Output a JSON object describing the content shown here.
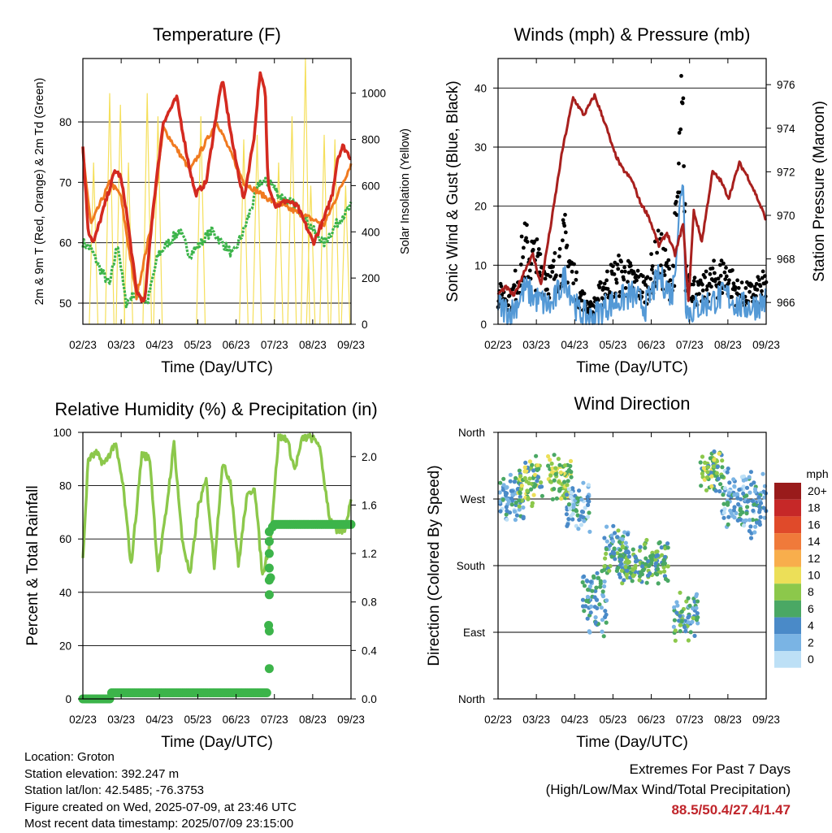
{
  "chart_data": [
    {
      "type": "line",
      "title": "Temperature (F)",
      "xlabel": "Time (Day/UTC)",
      "ylabel": "2m & 9m T (Red, Orange) & 2m Td (Green)",
      "y2label": "Solar Insolation (Yellow)",
      "x_ticks": [
        "02/23",
        "03/23",
        "04/23",
        "05/23",
        "06/23",
        "07/23",
        "08/23",
        "09/23"
      ],
      "ylim": [
        46.5,
        90.5
      ],
      "y_ticks": [
        50,
        60,
        70,
        80
      ],
      "y2lim": [
        0,
        1150
      ],
      "y2_ticks": [
        0,
        200,
        400,
        600,
        800,
        1000
      ],
      "grid": true,
      "series": [
        {
          "name": "2m T",
          "color": "#d42a20",
          "x": [
            0,
            0.2,
            0.4,
            0.8,
            1.2,
            1.4,
            1.6,
            2.0,
            2.3,
            2.6,
            3.0,
            3.5,
            3.9,
            4.2,
            4.6,
            5.0,
            5.2,
            5.6,
            6.0,
            6.4,
            6.6,
            6.8,
            6.9,
            7.2,
            7.6,
            8.0,
            8.3,
            8.6,
            9.0,
            9.3,
            9.5,
            9.7,
            10.0
          ],
          "y": [
            76,
            62,
            60,
            66,
            72,
            71,
            66,
            52,
            50,
            65,
            80,
            84,
            74,
            68,
            70,
            82,
            87,
            76,
            67,
            78,
            88,
            85,
            70,
            66,
            67,
            66,
            63,
            60,
            64,
            68,
            74,
            76,
            74
          ]
        },
        {
          "name": "9m T",
          "color": "#f07a20",
          "x": [
            0,
            0.3,
            0.6,
            1.0,
            1.4,
            2.0,
            2.6,
            3.0,
            4.0,
            5.0,
            6.0,
            7.0,
            8.0,
            9.0,
            10.0
          ],
          "y": [
            75,
            63,
            66,
            70,
            68,
            51,
            64,
            79,
            72,
            80,
            70,
            67,
            65,
            63,
            73
          ]
        },
        {
          "name": "2m Td",
          "color": "#3cb44a",
          "x": [
            0,
            0.3,
            0.6,
            1.0,
            1.3,
            1.6,
            2.0,
            2.4,
            2.8,
            3.2,
            3.6,
            4.0,
            4.4,
            4.8,
            5.2,
            5.6,
            6.0,
            6.3,
            6.6,
            7.0,
            7.3,
            7.6,
            8.0,
            8.3,
            8.6,
            9.0,
            9.3,
            9.6,
            10.0
          ],
          "y": [
            60,
            59,
            56,
            53,
            60,
            50,
            52,
            50,
            58,
            60,
            62,
            58,
            60,
            62,
            60,
            58,
            62,
            66,
            70,
            70,
            68,
            67,
            66,
            64,
            62,
            60,
            62,
            64,
            66
          ]
        }
      ],
      "solar_insolation": {
        "name": "Solar Insolation",
        "color": "#f5df5a",
        "peaks_x": [
          0.4,
          1.0,
          1.4,
          1.7,
          2.4,
          2.8,
          4.4,
          6.0,
          6.5,
          7.3,
          7.8,
          8.3,
          8.5,
          9.0,
          9.4,
          9.8
        ],
        "peaks_y": [
          700,
          1000,
          950,
          700,
          1000,
          900,
          900,
          800,
          820,
          700,
          900,
          1150,
          600,
          820,
          800,
          600
        ]
      }
    },
    {
      "type": "line",
      "title": "Winds (mph) & Pressure (mb)",
      "xlabel": "Time (Day/UTC)",
      "ylabel": "Sonic Wind & Gust (Blue, Black)",
      "y2label": "Station Pressure (Maroon)",
      "x_ticks": [
        "02/23",
        "03/23",
        "04/23",
        "05/23",
        "06/23",
        "07/23",
        "08/23",
        "09/23"
      ],
      "ylim": [
        0,
        45
      ],
      "y_ticks": [
        0,
        10,
        20,
        30,
        40
      ],
      "y2lim": [
        965.0,
        977.2
      ],
      "y2_ticks": [
        966,
        968,
        970,
        972,
        974,
        976
      ],
      "grid": true,
      "series": [
        {
          "name": "Station Pressure",
          "color": "#a8201e",
          "x": [
            0,
            0.3,
            0.6,
            1.0,
            1.3,
            1.6,
            2.0,
            2.4,
            2.8,
            3.2,
            3.6,
            4.0,
            4.3,
            4.6,
            5.0,
            5.3,
            5.6,
            6.0,
            6.3,
            6.6,
            6.9,
            7.1,
            7.3,
            7.6,
            8.0,
            8.3,
            8.6,
            9.0,
            9.3,
            9.6,
            10.0
          ],
          "y": [
            966.4,
            966.7,
            966.3,
            967.5,
            968.2,
            966.8,
            969.8,
            973.0,
            975.4,
            974.6,
            975.5,
            974.2,
            973.0,
            972.2,
            971.6,
            970.6,
            970.0,
            968.6,
            969.2,
            968.2,
            969.6,
            966.0,
            970.2,
            968.8,
            972.0,
            971.6,
            970.8,
            972.4,
            971.8,
            971.0,
            969.8
          ]
        },
        {
          "name": "Sonic Wind",
          "color": "#5499d6",
          "x": [
            0,
            0.5,
            1.0,
            1.5,
            2.0,
            2.5,
            3.0,
            3.5,
            4.0,
            4.5,
            5.0,
            5.5,
            6.0,
            6.5,
            6.9,
            7.0,
            7.1,
            7.5,
            8.0,
            8.5,
            9.0,
            9.5,
            10.0
          ],
          "y": [
            3,
            2,
            6,
            4,
            3,
            8,
            2,
            1,
            3,
            4,
            5,
            3,
            8,
            5,
            26,
            4,
            2,
            3,
            4,
            5,
            3,
            3,
            4
          ]
        },
        {
          "name": "Gust",
          "color": "#000000",
          "x": [
            0,
            0.5,
            1.0,
            1.5,
            2.0,
            2.5,
            3.0,
            3.5,
            4.0,
            4.5,
            5.0,
            5.5,
            6.0,
            6.5,
            6.9,
            7.0,
            7.5,
            8.0,
            8.5,
            9.0,
            9.5,
            10.0
          ],
          "y": [
            6,
            5,
            15,
            12,
            9,
            16,
            6,
            3,
            8,
            10,
            9,
            7,
            14,
            8,
            42,
            10,
            6,
            9,
            10,
            6,
            6,
            8
          ]
        }
      ]
    },
    {
      "type": "line",
      "title": "Relative Humidity (%) & Precipitation (in)",
      "xlabel": "Time (Day/UTC)",
      "ylabel": "Percent & Total Rainfall",
      "x_ticks": [
        "02/23",
        "03/23",
        "04/23",
        "05/23",
        "06/23",
        "07/23",
        "08/23",
        "09/23"
      ],
      "ylim": [
        0,
        100
      ],
      "y_ticks": [
        0,
        20,
        40,
        60,
        80,
        100
      ],
      "y2lim": [
        0,
        2.2
      ],
      "y2_ticks": [
        "0.0",
        "0.4",
        "0.8",
        "1.2",
        "1.6",
        "2.0"
      ],
      "grid": true,
      "series": [
        {
          "name": "Relative Humidity",
          "color": "#8cc84b",
          "x": [
            0,
            0.2,
            0.5,
            0.8,
            1.2,
            1.5,
            1.8,
            2.2,
            2.5,
            2.8,
            3.1,
            3.4,
            3.7,
            4.0,
            4.3,
            4.6,
            4.9,
            5.2,
            5.5,
            5.8,
            6.1,
            6.4,
            6.7,
            7.0,
            7.3,
            7.6,
            7.9,
            8.2,
            8.5,
            8.8,
            9.2,
            9.5,
            9.8,
            10.0
          ],
          "y": [
            52,
            90,
            92,
            88,
            96,
            80,
            50,
            92,
            90,
            48,
            70,
            96,
            60,
            46,
            72,
            82,
            50,
            88,
            82,
            50,
            75,
            80,
            46,
            60,
            98,
            98,
            86,
            98,
            98,
            96,
            68,
            62,
            64,
            76
          ]
        },
        {
          "name": "Total Rainfall",
          "color": "#3cb44a",
          "x": [
            0,
            1.0,
            1.01,
            6.9,
            6.92,
            7.0,
            7.02,
            7.08,
            10.0
          ],
          "y": [
            0.0,
            0.0,
            0.05,
            0.05,
            0.56,
            1.0,
            1.3,
            1.44,
            1.44
          ]
        }
      ]
    },
    {
      "type": "scatter",
      "title": "Wind Direction",
      "xlabel": "Time (Day/UTC)",
      "ylabel": "Direction (Colored By Speed)",
      "x_ticks": [
        "02/23",
        "03/23",
        "04/23",
        "05/23",
        "06/23",
        "07/23",
        "08/23",
        "09/23"
      ],
      "y_categories": [
        "North",
        "East",
        "South",
        "West",
        "North"
      ],
      "ylim": [
        0,
        360
      ],
      "grid": true,
      "legend": {
        "title": "mph",
        "position": "right",
        "labels": [
          "20+",
          "18",
          "16",
          "14",
          "12",
          "10",
          "8",
          "6",
          "4",
          "2",
          "0"
        ],
        "colors": [
          "#991b1b",
          "#c62828",
          "#e04a2a",
          "#f07a3a",
          "#f8ae4c",
          "#ecdf58",
          "#8cc84b",
          "#4aa864",
          "#4a8ac8",
          "#7ab4e4",
          "#bde0f6"
        ]
      },
      "clusters": [
        {
          "x": 0.5,
          "dir": 270,
          "spread": 25,
          "speed": 3
        },
        {
          "x": 1.2,
          "dir": 295,
          "spread": 30,
          "speed": 7
        },
        {
          "x": 2.3,
          "dir": 300,
          "spread": 25,
          "speed": 8
        },
        {
          "x": 3.0,
          "dir": 260,
          "spread": 30,
          "speed": 3
        },
        {
          "x": 3.6,
          "dir": 130,
          "spread": 35,
          "speed": 4
        },
        {
          "x": 4.4,
          "dir": 200,
          "spread": 30,
          "speed": 5
        },
        {
          "x": 5.0,
          "dir": 180,
          "spread": 20,
          "speed": 6
        },
        {
          "x": 5.9,
          "dir": 185,
          "spread": 25,
          "speed": 6
        },
        {
          "x": 7.0,
          "dir": 110,
          "spread": 25,
          "speed": 5
        },
        {
          "x": 8.0,
          "dir": 310,
          "spread": 25,
          "speed": 7
        },
        {
          "x": 8.8,
          "dir": 270,
          "spread": 35,
          "speed": 3
        },
        {
          "x": 9.6,
          "dir": 260,
          "spread": 40,
          "speed": 3
        }
      ]
    }
  ],
  "info": {
    "location": "Location: Groton",
    "elevation": "Station elevation: 392.247 m",
    "latlon": "Station lat/lon: 42.5485; -76.3753",
    "created": "Figure created on Wed, 2025-07-09, at 23:46 UTC",
    "recent": "Most recent data timestamp: 2025/07/09 23:15:00"
  },
  "extremes": {
    "title": "Extremes For Past 7 Days",
    "subtitle": "(High/Low/Max Wind/Total Precipitation)",
    "values": "88.5/50.4/27.4/1.47"
  }
}
